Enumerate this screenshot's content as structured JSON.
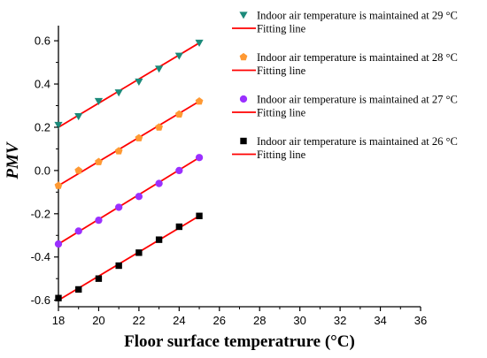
{
  "chart_data": {
    "type": "scatter",
    "xlabel": "Floor surface temperatrure (°C)",
    "ylabel": "PMV",
    "xlim": [
      18,
      36
    ],
    "ylim": [
      -0.6,
      0.6
    ],
    "xticks": [
      18,
      20,
      22,
      24,
      26,
      28,
      30,
      32,
      34,
      36
    ],
    "yticks": [
      -0.6,
      -0.4,
      -0.2,
      0.0,
      0.2,
      0.4,
      0.6
    ],
    "ytick_labels": [
      "-0.6",
      "-0.4",
      "-0.2",
      "0.0",
      "0.2",
      "0.4",
      "0.6"
    ],
    "grid": false,
    "legend_position": "top-right",
    "fit_color": "#ff0000",
    "series": [
      {
        "name": "Indoor air temperature is maintained at 29 °C",
        "marker": "triangle-down",
        "color": "#1b8a7a",
        "x": [
          18,
          19,
          20,
          21,
          22,
          23,
          24,
          25
        ],
        "y": [
          0.21,
          0.25,
          0.32,
          0.36,
          0.41,
          0.47,
          0.53,
          0.59
        ],
        "fit_label": "Fitting line",
        "fit": [
          [
            18,
            0.2
          ],
          [
            25,
            0.59
          ]
        ]
      },
      {
        "name": "Indoor air temperature is maintained at 28 °C",
        "marker": "pentagon",
        "color": "#ff9933",
        "x": [
          18,
          19,
          20,
          21,
          22,
          23,
          24,
          25
        ],
        "y": [
          -0.07,
          0.0,
          0.04,
          0.09,
          0.15,
          0.2,
          0.26,
          0.32
        ],
        "fit_label": "Fitting line",
        "fit": [
          [
            18,
            -0.07
          ],
          [
            25,
            0.32
          ]
        ]
      },
      {
        "name": "Indoor air temperature is maintained at 27 °C",
        "marker": "circle",
        "color": "#9b30ff",
        "x": [
          18,
          19,
          20,
          21,
          22,
          23,
          24,
          25
        ],
        "y": [
          -0.34,
          -0.28,
          -0.23,
          -0.17,
          -0.12,
          -0.06,
          0.0,
          0.06
        ],
        "fit_label": "Fitting line",
        "fit": [
          [
            18,
            -0.34
          ],
          [
            25,
            0.06
          ]
        ]
      },
      {
        "name": "Indoor air temperature is maintained at 26 °C",
        "marker": "square",
        "color": "#000000",
        "x": [
          18,
          19,
          20,
          21,
          22,
          23,
          24,
          25
        ],
        "y": [
          -0.59,
          -0.55,
          -0.5,
          -0.44,
          -0.38,
          -0.32,
          -0.26,
          -0.21
        ],
        "fit_label": "Fitting line",
        "fit": [
          [
            18,
            -0.6
          ],
          [
            25,
            -0.21
          ]
        ]
      }
    ]
  }
}
